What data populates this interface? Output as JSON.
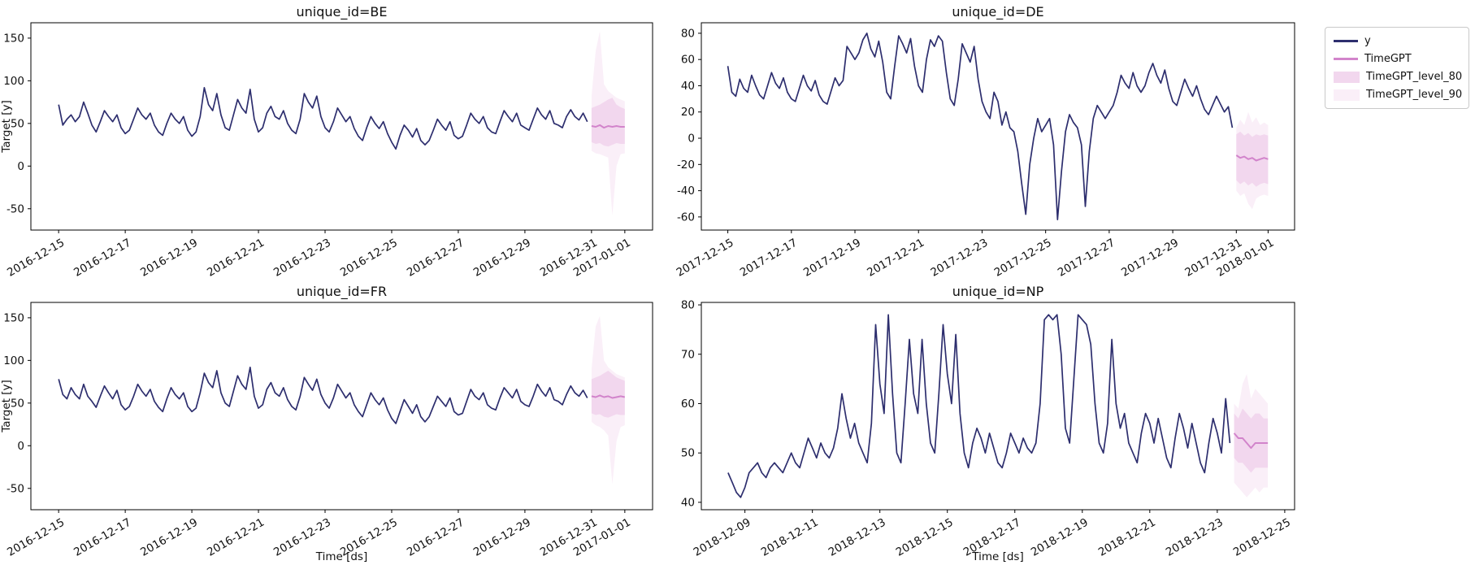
{
  "figure": {
    "legend": {
      "entries": [
        {
          "label": "y",
          "type": "line",
          "color": "#2d2e6e"
        },
        {
          "label": "TimeGPT",
          "type": "line",
          "color": "#d284cb"
        },
        {
          "label": "TimeGPT_level_80",
          "type": "patch",
          "color": "#f2d7ee"
        },
        {
          "label": "TimeGPT_level_90",
          "type": "patch",
          "color": "#faeff8"
        }
      ]
    },
    "colors": {
      "history_line": "#2d2e6e",
      "forecast_line": "#d284cb",
      "level_80_fill": "#f2d7ee",
      "level_90_fill": "#faeff8",
      "axis": "#000000"
    }
  },
  "chart_data": [
    {
      "type": "line",
      "id": "BE",
      "title": "unique_id=BE",
      "xlabel": "",
      "ylabel": "Target [y]",
      "ylim": [
        -75,
        168
      ],
      "yticks": [
        -50,
        0,
        50,
        100,
        150
      ],
      "xlim_hours": [
        -20,
        428
      ],
      "xticks": {
        "hours": [
          0,
          48,
          96,
          144,
          192,
          240,
          288,
          336,
          384,
          408
        ],
        "labels": [
          "2016-12-15",
          "2016-12-17",
          "2016-12-19",
          "2016-12-21",
          "2016-12-23",
          "2016-12-25",
          "2016-12-27",
          "2016-12-29",
          "2016-12-31",
          "2017-01-01"
        ]
      },
      "series": {
        "y": {
          "start_hour": 0,
          "step_hours": 3,
          "values": [
            72,
            48,
            55,
            60,
            52,
            58,
            75,
            62,
            48,
            40,
            52,
            65,
            58,
            52,
            60,
            45,
            38,
            42,
            55,
            68,
            60,
            55,
            62,
            48,
            40,
            36,
            50,
            62,
            55,
            50,
            58,
            42,
            35,
            40,
            58,
            92,
            72,
            65,
            85,
            60,
            45,
            42,
            60,
            78,
            68,
            62,
            90,
            55,
            40,
            45,
            62,
            70,
            58,
            55,
            65,
            50,
            42,
            38,
            55,
            85,
            75,
            68,
            82,
            58,
            45,
            40,
            52,
            68,
            60,
            52,
            58,
            44,
            35,
            30,
            45,
            58,
            50,
            44,
            52,
            38,
            28,
            20,
            36,
            48,
            42,
            34,
            44,
            30,
            25,
            30,
            42,
            55,
            48,
            42,
            52,
            36,
            32,
            35,
            48,
            62,
            55,
            50,
            58,
            45,
            40,
            38,
            52,
            65,
            58,
            52,
            62,
            48,
            45,
            42,
            55,
            68,
            60,
            55,
            65,
            50,
            48,
            45,
            58,
            66,
            58,
            54,
            62,
            52
          ]
        },
        "TimeGPT": {
          "start_hour": 384,
          "step_hours": 3,
          "values": [
            47,
            46,
            48,
            45,
            47,
            46,
            47,
            46,
            46
          ]
        },
        "TimeGPT_level_80": {
          "lo": [
            28,
            26,
            27,
            24,
            23,
            25,
            27,
            26,
            26
          ],
          "hi": [
            68,
            70,
            72,
            75,
            78,
            80,
            72,
            69,
            67
          ]
        },
        "TimeGPT_level_90": {
          "lo": [
            18,
            15,
            14,
            12,
            10,
            -58,
            0,
            14,
            15
          ],
          "hi": [
            82,
            135,
            158,
            96,
            88,
            84,
            80,
            78,
            76
          ]
        }
      }
    },
    {
      "type": "line",
      "id": "DE",
      "title": "unique_id=DE",
      "xlabel": "",
      "ylabel": "",
      "ylim": [
        -70,
        88
      ],
      "yticks": [
        -60,
        -40,
        -20,
        0,
        20,
        40,
        60,
        80
      ],
      "xlim_hours": [
        -20,
        428
      ],
      "xticks": {
        "hours": [
          0,
          48,
          96,
          144,
          192,
          240,
          288,
          336,
          384,
          408
        ],
        "labels": [
          "2017-12-15",
          "2017-12-17",
          "2017-12-19",
          "2017-12-21",
          "2017-12-23",
          "2017-12-25",
          "2017-12-27",
          "2017-12-29",
          "2017-12-31",
          "2018-01-01"
        ]
      },
      "series": {
        "y": {
          "start_hour": 0,
          "step_hours": 3,
          "values": [
            55,
            35,
            32,
            45,
            38,
            35,
            48,
            40,
            33,
            30,
            40,
            50,
            42,
            38,
            46,
            35,
            30,
            28,
            38,
            48,
            40,
            36,
            44,
            33,
            28,
            26,
            36,
            46,
            40,
            44,
            70,
            65,
            60,
            65,
            75,
            80,
            68,
            62,
            74,
            58,
            35,
            30,
            55,
            78,
            72,
            65,
            76,
            55,
            40,
            35,
            60,
            75,
            70,
            78,
            74,
            50,
            30,
            25,
            45,
            72,
            65,
            58,
            70,
            45,
            28,
            20,
            15,
            35,
            28,
            10,
            20,
            8,
            5,
            -10,
            -35,
            -58,
            -20,
            0,
            15,
            5,
            10,
            15,
            -5,
            -62,
            -25,
            5,
            18,
            12,
            8,
            -5,
            -52,
            -10,
            15,
            25,
            20,
            15,
            20,
            25,
            35,
            48,
            42,
            38,
            50,
            40,
            35,
            40,
            50,
            57,
            48,
            42,
            52,
            38,
            28,
            25,
            35,
            45,
            38,
            32,
            40,
            30,
            22,
            18,
            25,
            32,
            26,
            20,
            24,
            8
          ]
        },
        "TimeGPT": {
          "start_hour": 384,
          "step_hours": 3,
          "values": [
            -13,
            -15,
            -14,
            -16,
            -15,
            -17,
            -16,
            -15,
            -16
          ]
        },
        "TimeGPT_level_80": {
          "lo": [
            -32,
            -35,
            -33,
            -36,
            -34,
            -37,
            -35,
            -34,
            -35
          ],
          "hi": [
            3,
            5,
            2,
            4,
            1,
            3,
            2,
            3,
            2
          ]
        },
        "TimeGPT_level_90": {
          "lo": [
            -40,
            -44,
            -42,
            -50,
            -54,
            -46,
            -44,
            -43,
            -44
          ],
          "hi": [
            8,
            14,
            10,
            20,
            12,
            16,
            10,
            12,
            10
          ]
        }
      }
    },
    {
      "type": "line",
      "id": "FR",
      "title": "unique_id=FR",
      "xlabel": "Time [ds]",
      "ylabel": "Target [y]",
      "ylim": [
        -75,
        168
      ],
      "yticks": [
        -50,
        0,
        50,
        100,
        150
      ],
      "xlim_hours": [
        -20,
        428
      ],
      "xticks": {
        "hours": [
          0,
          48,
          96,
          144,
          192,
          240,
          288,
          336,
          384,
          408
        ],
        "labels": [
          "2016-12-15",
          "2016-12-17",
          "2016-12-19",
          "2016-12-21",
          "2016-12-23",
          "2016-12-25",
          "2016-12-27",
          "2016-12-29",
          "2016-12-31",
          "2017-01-01"
        ]
      },
      "series": {
        "y": {
          "start_hour": 0,
          "step_hours": 3,
          "values": [
            78,
            60,
            55,
            68,
            60,
            55,
            72,
            58,
            52,
            45,
            58,
            70,
            62,
            55,
            65,
            48,
            42,
            46,
            58,
            72,
            64,
            58,
            66,
            52,
            45,
            40,
            55,
            68,
            60,
            55,
            62,
            46,
            40,
            44,
            62,
            85,
            74,
            68,
            88,
            62,
            50,
            46,
            64,
            82,
            72,
            66,
            92,
            58,
            44,
            48,
            66,
            74,
            62,
            58,
            68,
            54,
            46,
            42,
            58,
            80,
            72,
            65,
            78,
            60,
            50,
            44,
            56,
            72,
            64,
            56,
            62,
            48,
            40,
            34,
            48,
            62,
            54,
            48,
            56,
            42,
            32,
            26,
            40,
            54,
            46,
            38,
            48,
            34,
            28,
            34,
            46,
            58,
            52,
            46,
            56,
            40,
            36,
            38,
            52,
            66,
            58,
            54,
            62,
            48,
            44,
            42,
            56,
            68,
            62,
            56,
            66,
            52,
            48,
            46,
            58,
            72,
            64,
            58,
            68,
            54,
            52,
            48,
            60,
            70,
            62,
            58,
            65,
            56
          ]
        },
        "TimeGPT": {
          "start_hour": 384,
          "step_hours": 3,
          "values": [
            58,
            57,
            59,
            57,
            58,
            56,
            57,
            58,
            57
          ]
        },
        "TimeGPT_level_80": {
          "lo": [
            38,
            36,
            37,
            34,
            33,
            35,
            37,
            36,
            36
          ],
          "hi": [
            78,
            80,
            82,
            85,
            88,
            84,
            80,
            78,
            76
          ]
        },
        "TimeGPT_level_90": {
          "lo": [
            28,
            24,
            22,
            18,
            12,
            -45,
            5,
            22,
            24
          ],
          "hi": [
            90,
            140,
            152,
            100,
            92,
            88,
            84,
            82,
            80
          ]
        }
      }
    },
    {
      "type": "line",
      "id": "NP",
      "title": "unique_id=NP",
      "xlabel": "Time [ds]",
      "ylabel": "",
      "ylim": [
        38.5,
        80.5
      ],
      "yticks": [
        40,
        50,
        60,
        70,
        80
      ],
      "xlim_hours": [
        -19,
        403
      ],
      "xticks": {
        "hours": [
          12,
          60,
          108,
          156,
          204,
          252,
          300,
          348,
          396
        ],
        "labels": [
          "2018-12-09",
          "2018-12-11",
          "2018-12-13",
          "2018-12-15",
          "2018-12-17",
          "2018-12-19",
          "2018-12-21",
          "2018-12-23",
          "2018-12-25"
        ]
      },
      "series": {
        "y": {
          "start_hour": 0,
          "step_hours": 3,
          "values": [
            46,
            44,
            42,
            41,
            43,
            46,
            47,
            48,
            46,
            45,
            47,
            48,
            47,
            46,
            48,
            50,
            48,
            47,
            50,
            53,
            51,
            49,
            52,
            50,
            49,
            51,
            55,
            62,
            57,
            53,
            56,
            52,
            50,
            48,
            56,
            76,
            64,
            58,
            78,
            62,
            50,
            48,
            60,
            73,
            62,
            58,
            73,
            60,
            52,
            50,
            62,
            76,
            66,
            60,
            74,
            58,
            50,
            47,
            52,
            55,
            53,
            50,
            54,
            51,
            48,
            47,
            50,
            54,
            52,
            50,
            53,
            51,
            50,
            52,
            60,
            77,
            78,
            77,
            78,
            70,
            55,
            52,
            65,
            78,
            77,
            76,
            72,
            60,
            52,
            50,
            56,
            73,
            60,
            55,
            58,
            52,
            50,
            48,
            54,
            58,
            56,
            52,
            57,
            53,
            49,
            47,
            53,
            58,
            55,
            51,
            56,
            52,
            48,
            46,
            52,
            57,
            54,
            50,
            61,
            52
          ]
        },
        "TimeGPT": {
          "start_hour": 360,
          "step_hours": 3,
          "values": [
            54,
            53,
            53,
            52,
            51,
            52,
            52,
            52,
            52
          ]
        },
        "TimeGPT_level_80": {
          "lo": [
            49,
            48,
            48,
            47,
            46,
            47,
            47,
            47,
            47
          ],
          "hi": [
            58,
            57,
            59,
            58,
            57,
            58,
            58,
            57,
            57
          ]
        },
        "TimeGPT_level_90": {
          "lo": [
            44,
            43,
            42,
            41,
            42,
            43,
            42,
            43,
            43
          ],
          "hi": [
            60,
            59,
            64,
            66,
            61,
            63,
            62,
            61,
            60
          ]
        }
      }
    }
  ]
}
